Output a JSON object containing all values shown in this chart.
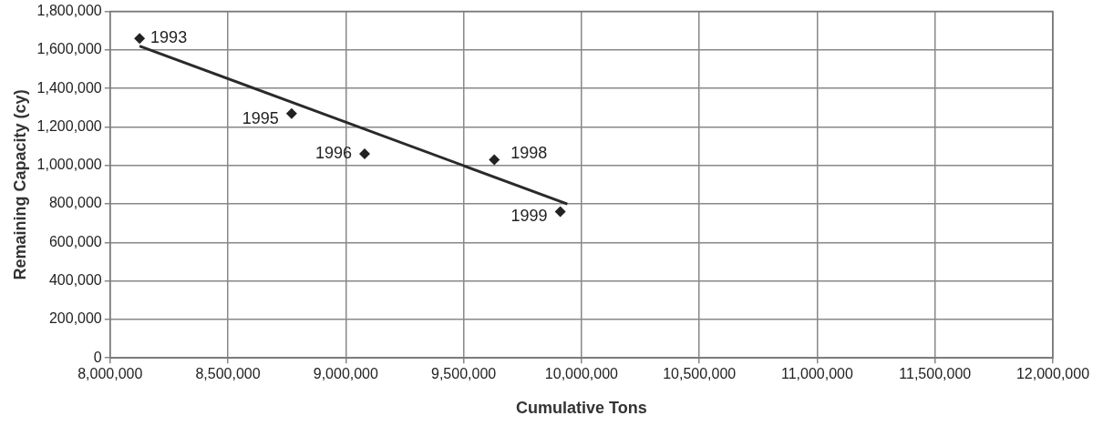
{
  "chart_data": {
    "type": "scatter",
    "xlabel": "Cumulative Tons",
    "ylabel": "Remaining Capacity (cy)",
    "xlim": [
      8000000,
      12000000
    ],
    "xticks": [
      {
        "value": 8000000,
        "label": "8,000,000"
      },
      {
        "value": 8500000,
        "label": "8,500,000"
      },
      {
        "value": 9000000,
        "label": "9,000,000"
      },
      {
        "value": 9500000,
        "label": "9,500,000"
      },
      {
        "value": 10000000,
        "label": "10,000,000"
      },
      {
        "value": 10500000,
        "label": "10,500,000"
      },
      {
        "value": 11000000,
        "label": "11,000,000"
      },
      {
        "value": 11500000,
        "label": "11,500,000"
      },
      {
        "value": 12000000,
        "label": "12,000,000"
      }
    ],
    "ylim": [
      0,
      1800000
    ],
    "yticks": [
      0,
      {
        "value": 200000,
        "label": "200,000"
      },
      {
        "value": 400000,
        "label": "400,000"
      },
      {
        "value": 600000,
        "label": "600,000"
      },
      {
        "value": 800000,
        "label": "800,000"
      },
      {
        "value": 1000000,
        "label": "1,000,000"
      },
      {
        "value": 1200000,
        "label": "1,200,000"
      },
      {
        "value": 1400000,
        "label": "1,400,000"
      },
      {
        "value": 1600000,
        "label": "1,600,000"
      },
      {
        "value": 1800000,
        "label": "1,800,000"
      }
    ],
    "grid": true,
    "legend": false,
    "series": [
      {
        "color": "#222222",
        "marker": "diamond",
        "x": [
          8125000,
          8770000,
          9080000,
          9630000,
          9910000
        ],
        "values": [
          1660000,
          1270000,
          1060000,
          1030000,
          760000
        ]
      },
      {
        "type": "line",
        "color": "#2a2a2a",
        "marker": "none",
        "line_style": "solid",
        "x": [
          8125000,
          9940000
        ],
        "values": [
          1620000,
          800000
        ]
      }
    ],
    "annotations": [
      {
        "text": "1993",
        "x": 8125000,
        "y": 1660000
      },
      {
        "text": "1995",
        "x": 8770000,
        "y": 1270000
      },
      {
        "text": "1996",
        "x": 9080000,
        "y": 1060000
      },
      {
        "text": "1998",
        "x": 9630000,
        "y": 1030000
      },
      {
        "text": "1999",
        "x": 9910000,
        "y": 760000
      }
    ]
  }
}
